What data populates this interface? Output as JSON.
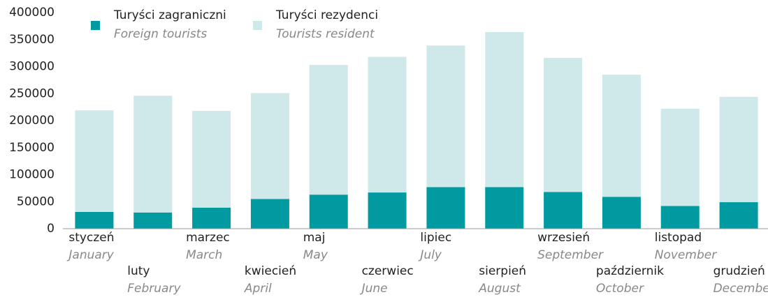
{
  "chart_data": {
    "type": "stacked-bar",
    "categories": [
      "styczeń",
      "luty",
      "marzec",
      "kwiecień",
      "maj",
      "czerwiec",
      "lipiec",
      "sierpień",
      "wrzesień",
      "październik",
      "listopad",
      "grudzień"
    ],
    "categories_en": [
      "January",
      "February",
      "March",
      "April",
      "May",
      "June",
      "July",
      "August",
      "September",
      "October",
      "November",
      "December"
    ],
    "series": [
      {
        "name": "Turyści zagraniczni",
        "name_en": "Foreign tourists",
        "color": "#009aa0",
        "values": [
          31000,
          30000,
          39000,
          55000,
          63000,
          67000,
          77000,
          77000,
          68000,
          59000,
          42000,
          49000
        ]
      },
      {
        "name": "Turyści rezydenci",
        "name_en": "Tourists resident",
        "color": "#cfe8ea",
        "values": [
          188000,
          216000,
          179000,
          196000,
          240000,
          251000,
          262000,
          287000,
          248000,
          226000,
          180000,
          195000
        ]
      }
    ],
    "ylim": [
      0,
      400000
    ],
    "yticks": [
      0,
      50000,
      100000,
      150000,
      200000,
      250000,
      300000,
      350000,
      400000
    ],
    "legend": "top-left"
  }
}
